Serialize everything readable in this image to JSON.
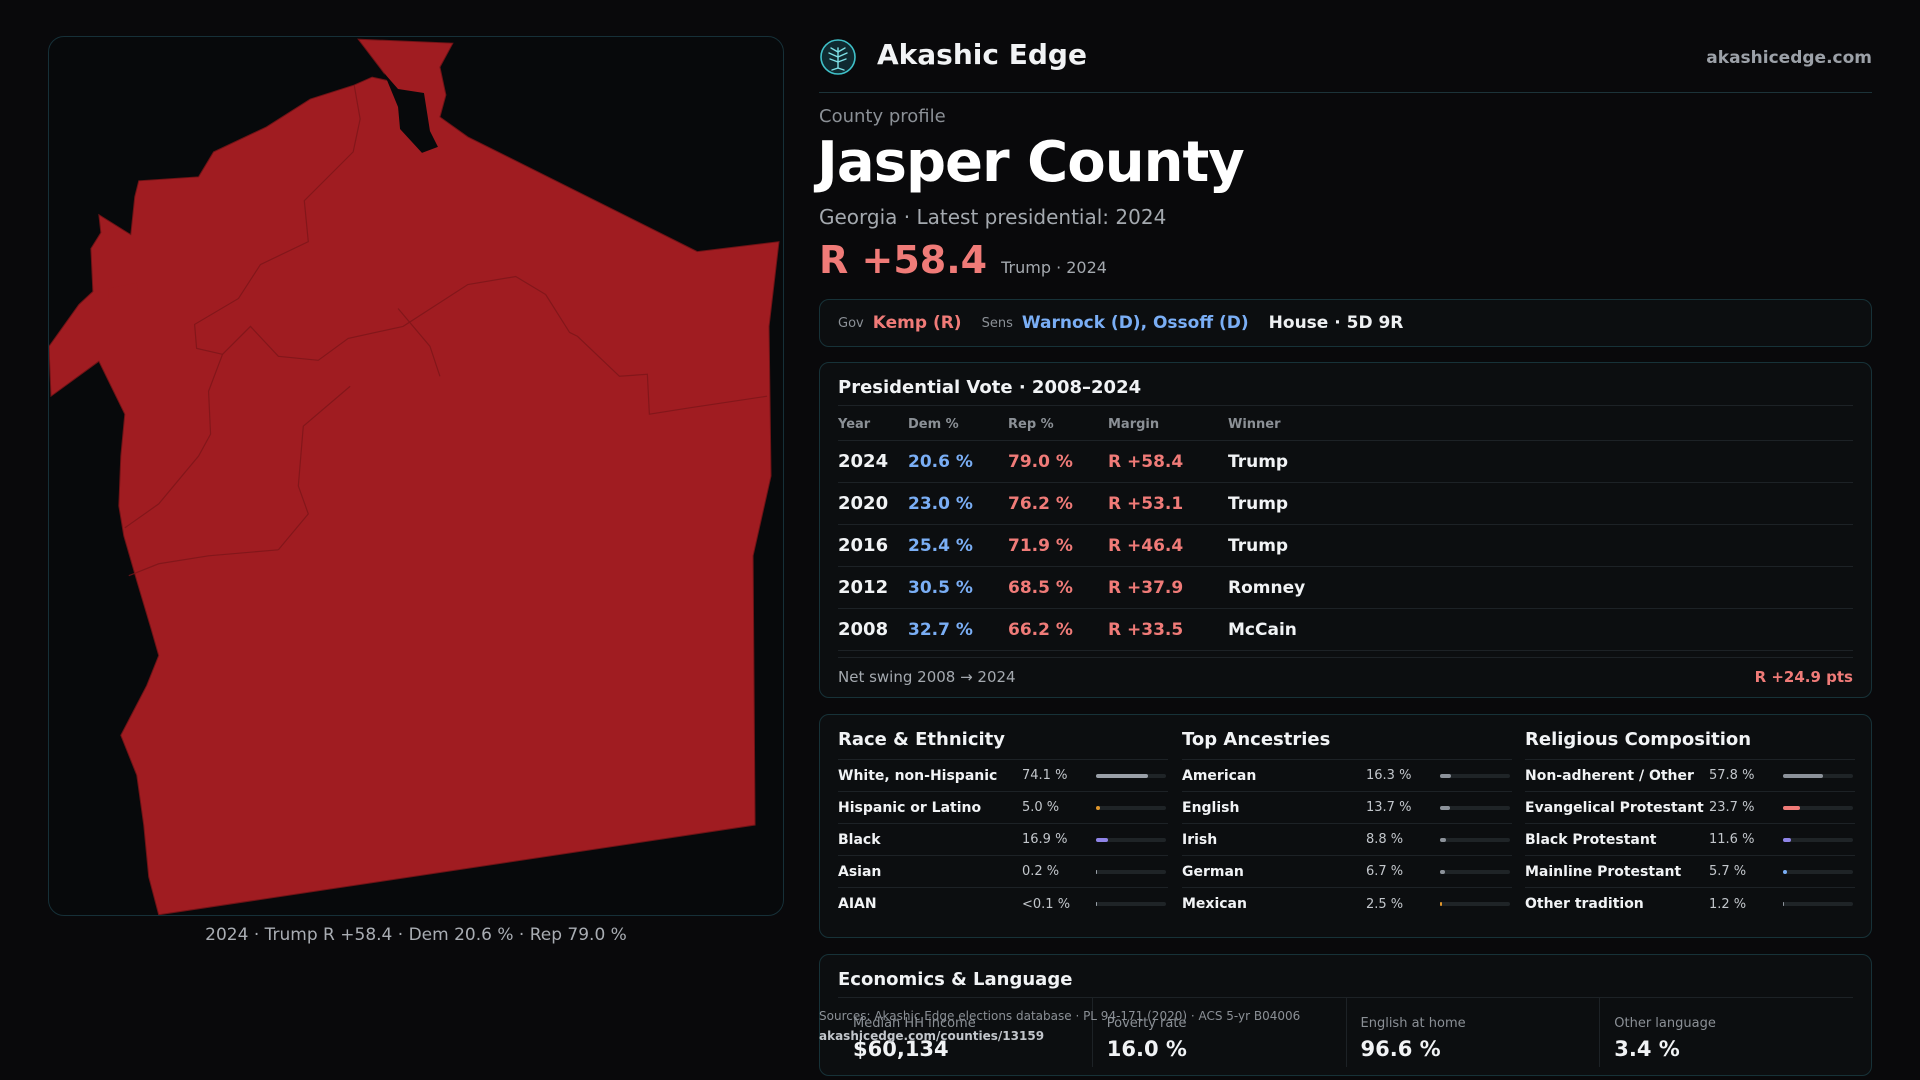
{
  "brand": {
    "name": "Akashic Edge",
    "domain": "akashicedge.com",
    "logo_icon": "tree-logo-icon"
  },
  "profile": {
    "eyebrow": "County profile",
    "title": "Jasper County",
    "subtitle": "Georgia · Latest presidential: 2024",
    "margin": "R +58.4",
    "margin_note": "Trump · 2024"
  },
  "officials": {
    "gov_label": "Gov",
    "gov_value": "Kemp (R)",
    "sens_label": "Sens",
    "sens_value": "Warnock (D), Ossoff (D)",
    "house_value": "House · 5D 9R"
  },
  "map": {
    "caption": "2024 · Trump R +58.4 · Dem 20.6 % · Rep 79.0 %",
    "fill_color": "#a01c21",
    "border_color": "#163038"
  },
  "presidential": {
    "title": "Presidential Vote · 2008–2024",
    "headers": [
      "Year",
      "Dem %",
      "Rep %",
      "Margin",
      "Winner"
    ],
    "rows": [
      {
        "year": "2024",
        "dem": "20.6 %",
        "rep": "79.0 %",
        "margin": "R +58.4",
        "winner": "Trump"
      },
      {
        "year": "2020",
        "dem": "23.0 %",
        "rep": "76.2 %",
        "margin": "R +53.1",
        "winner": "Trump"
      },
      {
        "year": "2016",
        "dem": "25.4 %",
        "rep": "71.9 %",
        "margin": "R +46.4",
        "winner": "Trump"
      },
      {
        "year": "2012",
        "dem": "30.5 %",
        "rep": "68.5 %",
        "margin": "R +37.9",
        "winner": "Romney"
      },
      {
        "year": "2008",
        "dem": "32.7 %",
        "rep": "66.2 %",
        "margin": "R +33.5",
        "winner": "McCain"
      }
    ],
    "swing_label": "Net swing 2008 → 2024",
    "swing_value": "R +24.9 pts"
  },
  "demographics": [
    {
      "title": "Race & Ethnicity",
      "rows": [
        {
          "name": "White, non-Hispanic",
          "value": "74.1 %",
          "pct": 74.1,
          "color": "#9aa0a8"
        },
        {
          "name": "Hispanic or Latino",
          "value": "5.0 %",
          "pct": 5.0,
          "color": "#e0962c"
        },
        {
          "name": "Black",
          "value": "16.9 %",
          "pct": 16.9,
          "color": "#8f84e8"
        },
        {
          "name": "Asian",
          "value": "0.2 %",
          "pct": 0.2,
          "color": "#9aa0a8"
        },
        {
          "name": "AIAN",
          "value": "<0.1 %",
          "pct": 0.05,
          "color": "#9aa0a8"
        }
      ]
    },
    {
      "title": "Top Ancestries",
      "rows": [
        {
          "name": "American",
          "value": "16.3 %",
          "pct": 16.3,
          "color": "#8c929a"
        },
        {
          "name": "English",
          "value": "13.7 %",
          "pct": 13.7,
          "color": "#8c929a"
        },
        {
          "name": "Irish",
          "value": "8.8 %",
          "pct": 8.8,
          "color": "#8c929a"
        },
        {
          "name": "German",
          "value": "6.7 %",
          "pct": 6.7,
          "color": "#8c929a"
        },
        {
          "name": "Mexican",
          "value": "2.5 %",
          "pct": 2.5,
          "color": "#e0962c"
        }
      ]
    },
    {
      "title": "Religious Composition",
      "rows": [
        {
          "name": "Non-adherent / Other",
          "value": "57.8 %",
          "pct": 57.8,
          "color": "#8c929a"
        },
        {
          "name": "Evangelical Protestant",
          "value": "23.7 %",
          "pct": 23.7,
          "color": "#f07b78"
        },
        {
          "name": "Black Protestant",
          "value": "11.6 %",
          "pct": 11.6,
          "color": "#8f84e8"
        },
        {
          "name": "Mainline Protestant",
          "value": "5.7 %",
          "pct": 5.7,
          "color": "#7aaef5"
        },
        {
          "name": "Other tradition",
          "value": "1.2 %",
          "pct": 1.2,
          "color": "#8c929a"
        }
      ]
    }
  ],
  "economics": {
    "title": "Economics & Language",
    "cells": [
      {
        "label": "Median HH income",
        "value": "$60,134"
      },
      {
        "label": "Poverty rate",
        "value": "16.0 %"
      },
      {
        "label": "English at home",
        "value": "96.6 %"
      },
      {
        "label": "Other language",
        "value": "3.4 %"
      }
    ]
  },
  "sources": {
    "line": "Sources: Akashic Edge elections database · PL 94-171 (2020) · ACS 5-yr B04006",
    "url": "akashicedge.com/counties/13159"
  }
}
